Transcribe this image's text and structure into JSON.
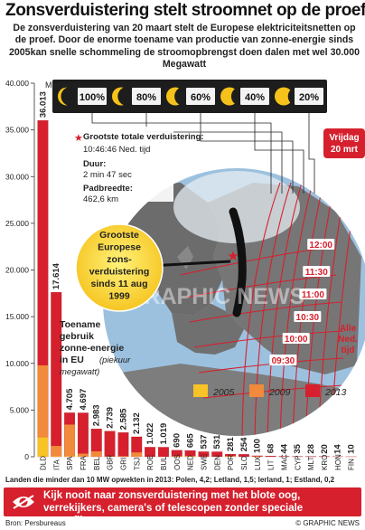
{
  "title": "Zonsverduistering stelt stroomnet op de proef",
  "intro": "De zonsverduistering van 20 maart stelt de Europese elektriciteitsnetten op de proef. Door de enorme toename van productie van zonne-energie sinds 2005kan snelle schommeling de stroomopbrengst doen dalen met wel 30.000 Megawatt",
  "phases": [
    "100%",
    "80%",
    "60%",
    "40%",
    "20%"
  ],
  "info": {
    "max_title": "Grootste totale verduistering:",
    "max_time": "10:46:46 Ned. tijd",
    "duur_label": "Duur:",
    "duur_value": "2 min 47 sec",
    "pad_label": "Padbreedte:",
    "pad_value": "462,6 km"
  },
  "bubble": [
    "Grootste",
    "Europese",
    "zons-",
    "verduistering",
    "sinds 11 aug",
    "1999"
  ],
  "date_badge": [
    "Vrijdag",
    "20 mrt"
  ],
  "times": [
    "09:30",
    "10:00",
    "10:30",
    "11:00",
    "11:30",
    "12:00"
  ],
  "nl_time": [
    "Alle",
    "Ned.",
    "tijd"
  ],
  "watermark": "GRAPHIC NEWS",
  "toename": {
    "lines": [
      "Toename",
      "gebruik",
      "zonne-energie",
      "in EU"
    ],
    "sub": [
      "(piekuur",
      "megawatt)"
    ]
  },
  "colors": {
    "y2005": "#f7c326",
    "y2009": "#f18a3a",
    "y2013": "#d6202d",
    "ocean": "#9cc1df",
    "land": "#6c6c6c"
  },
  "chart_data": {
    "type": "bar",
    "ylabel": "Megawatt",
    "ylim": [
      0,
      40000
    ],
    "yticks": [
      0,
      5000,
      10000,
      15000,
      20000,
      25000,
      30000,
      35000,
      40000
    ],
    "ytick_labels": [
      "0",
      "5.000",
      "10.000",
      "15.000",
      "20.000",
      "25.000",
      "30.000",
      "35.000",
      "40.000"
    ],
    "categories": [
      "DLD",
      "ITA",
      "SPA",
      "FRA",
      "BEL",
      "GBR",
      "GRI",
      "TSJ",
      "ROE",
      "BUL",
      "OOS",
      "NED",
      "SWE",
      "DEN",
      "POR",
      "SLO",
      "LUX",
      "LIT",
      "MAC",
      "CYP",
      "MLT",
      "KRO",
      "HON",
      "FIN"
    ],
    "series": [
      {
        "name": "2005",
        "values": [
          2056,
          37,
          48,
          26,
          2,
          11,
          1,
          0,
          0,
          0,
          24,
          51,
          4,
          3,
          3,
          0,
          24,
          0,
          0,
          0,
          0,
          0,
          0,
          4
        ]
      },
      {
        "name": "2009",
        "values": [
          9785,
          1157,
          3442,
          335,
          574,
          27,
          55,
          465,
          1,
          6,
          53,
          67,
          9,
          5,
          100,
          9,
          26,
          0,
          0,
          3,
          1,
          0,
          1,
          7
        ]
      },
      {
        "name": "2013",
        "values": [
          36013,
          17614,
          4705,
          4697,
          2983,
          2739,
          2585,
          2132,
          1022,
          1019,
          690,
          665,
          537,
          531,
          281,
          254,
          100,
          68,
          44,
          35,
          28,
          20,
          14,
          10
        ]
      }
    ],
    "value_labels": [
      "36.013",
      "17.614",
      "4.705",
      "4.697",
      "2.983",
      "2.739",
      "2.585",
      "2.132",
      "1.022",
      "1.019",
      "690",
      "665",
      "537",
      "531",
      "281",
      "254",
      "100",
      "68",
      "44",
      "35",
      "28",
      "20",
      "14",
      "10"
    ],
    "legend": [
      "2005",
      "2009",
      "2013"
    ]
  },
  "footnote": "Landen die minder dan 10 MW opwekten in 2013: Polen, 4,2; Letland, 1,5; Ierland, 1; Estland, 0,2",
  "warning": "Kijk nooit naar zonsverduistering met het blote oog, verrekijkers, camera's of telescopen zonder speciale zonnefilters",
  "source": "Bron: Persbureaus",
  "credit": "© GRAPHIC NEWS"
}
